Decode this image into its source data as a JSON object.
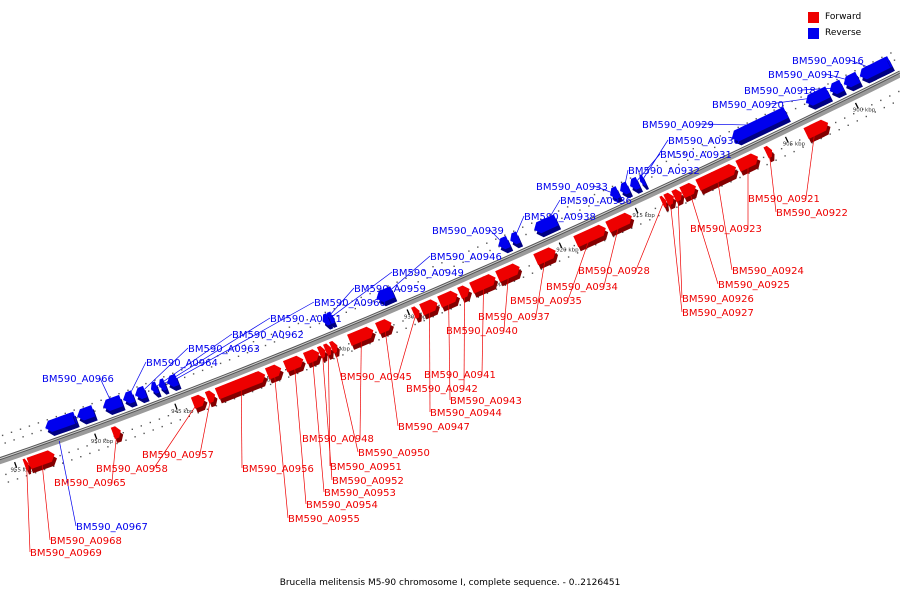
{
  "legend": {
    "forward_label": "Forward",
    "reverse_label": "Reverse",
    "forward_color": "#ee0000",
    "reverse_color": "#0000ee"
  },
  "caption": "Brucella melitensis M5-90 chromosome I, complete sequence. - 0..2126451",
  "ticks": [
    "900 kbp",
    "905 kbp",
    "910 kbp",
    "915 kbp",
    "920 kbp",
    "925 kbp",
    "930 kbp",
    "935 kbp",
    "940 kbp",
    "945 kbp",
    "950 kbp",
    "955 kbp"
  ],
  "reverse_genes": [
    "BM590_A0916",
    "BM590_A0917",
    "BM590_A0918",
    "BM590_A0920",
    "BM590_A0929",
    "BM590_A0930",
    "BM590_A0931",
    "BM590_A0932",
    "BM590_A0933",
    "BM590_A0936",
    "BM590_A0938",
    "BM590_A0939",
    "BM590_A0946",
    "BM590_A0949",
    "BM590_A0959",
    "BM590_A0960",
    "BM590_A0961",
    "BM590_A0962",
    "BM590_A0963",
    "BM590_A0964",
    "BM590_A0966",
    "BM590_A0967"
  ],
  "forward_genes": [
    "BM590_A0921",
    "BM590_A0922",
    "BM590_A0923",
    "BM590_A0924",
    "BM590_A0925",
    "BM590_A0926",
    "BM590_A0927",
    "BM590_A0928",
    "BM590_A0934",
    "BM590_A0935",
    "BM590_A0937",
    "BM590_A0940",
    "BM590_A0941",
    "BM590_A0942",
    "BM590_A0943",
    "BM590_A0944",
    "BM590_A0945",
    "BM590_A0947",
    "BM590_A0948",
    "BM590_A0950",
    "BM590_A0951",
    "BM590_A0952",
    "BM590_A0953",
    "BM590_A0954",
    "BM590_A0955",
    "BM590_A0956",
    "BM590_A0957",
    "BM590_A0958",
    "BM590_A0965",
    "BM590_A0968",
    "BM590_A0969"
  ]
}
